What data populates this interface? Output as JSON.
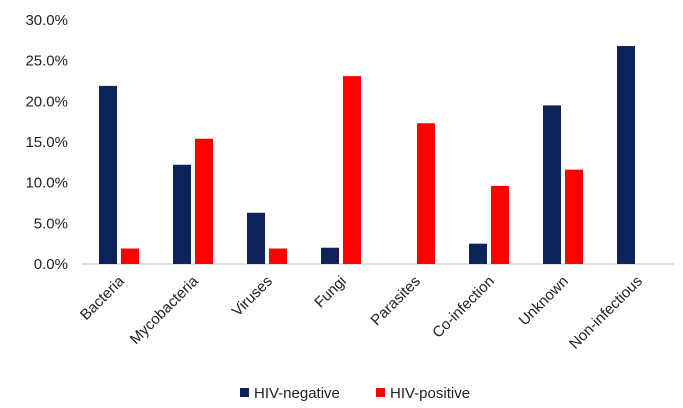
{
  "chart_data": {
    "type": "bar",
    "categories": [
      "Bacteria",
      "Mycobacteria",
      "Viruses",
      "Fungi",
      "Parasites",
      "Co-infection",
      "Unknown",
      "Non-infectious"
    ],
    "series": [
      {
        "name": "HIV-negative",
        "color": "#0d2259",
        "values": [
          21.9,
          12.2,
          6.3,
          2.0,
          0.0,
          2.5,
          19.5,
          26.8
        ]
      },
      {
        "name": "HIV-positive",
        "color": "#ff0000",
        "values": [
          1.9,
          15.4,
          1.9,
          23.1,
          17.3,
          9.6,
          11.6,
          0.0
        ]
      }
    ],
    "yticks": [
      "0.0%",
      "5.0%",
      "10.0%",
      "15.0%",
      "20.0%",
      "25.0%",
      "30.0%"
    ],
    "ylim": [
      0,
      30
    ],
    "title": "",
    "xlabel": "",
    "ylabel": "",
    "grid": false,
    "legend_position": "bottom"
  }
}
